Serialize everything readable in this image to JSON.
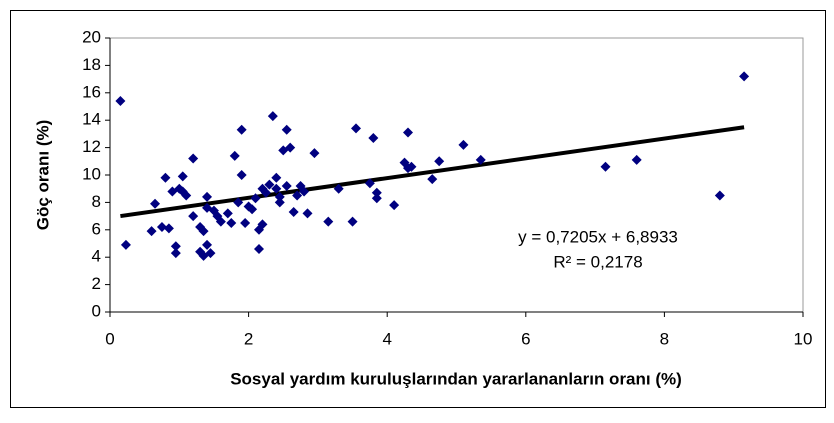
{
  "chart_data": {
    "type": "scatter",
    "xlabel": "Sosyal yardım kuruluşlarından yararlananların oranı (%)",
    "ylabel": "Göç oranı (%)",
    "color": "#000080",
    "xlim": [
      0,
      10
    ],
    "xticks": [
      0,
      2,
      4,
      6,
      8,
      10
    ],
    "ylim": [
      0,
      20
    ],
    "yticks": [
      0,
      2,
      4,
      6,
      8,
      10,
      12,
      14,
      16,
      18,
      20
    ],
    "x": [
      0.15,
      0.23,
      0.6,
      0.65,
      0.75,
      0.8,
      0.85,
      0.9,
      0.95,
      0.95,
      1.0,
      1.05,
      1.05,
      1.1,
      1.2,
      1.2,
      1.3,
      1.3,
      1.35,
      1.35,
      1.4,
      1.4,
      1.4,
      1.45,
      1.5,
      1.55,
      1.6,
      1.7,
      1.75,
      1.8,
      1.85,
      1.9,
      1.9,
      1.95,
      2.0,
      2.05,
      2.1,
      2.15,
      2.15,
      2.2,
      2.2,
      2.25,
      2.3,
      2.35,
      2.4,
      2.4,
      2.45,
      2.45,
      2.5,
      2.55,
      2.55,
      2.6,
      2.65,
      2.7,
      2.75,
      2.8,
      2.85,
      2.95,
      3.15,
      3.3,
      3.5,
      3.55,
      3.75,
      3.8,
      3.85,
      3.85,
      4.1,
      4.25,
      4.3,
      4.3,
      4.35,
      4.65,
      4.75,
      5.1,
      5.35,
      7.15,
      7.6,
      8.8,
      9.15
    ],
    "values": [
      15.4,
      4.9,
      5.9,
      7.9,
      6.2,
      9.8,
      6.1,
      8.8,
      4.8,
      4.3,
      9.0,
      9.9,
      8.8,
      8.5,
      11.2,
      7.0,
      6.2,
      4.4,
      4.1,
      5.9,
      4.9,
      8.4,
      7.6,
      4.3,
      7.4,
      7.0,
      6.6,
      7.2,
      6.5,
      11.4,
      8.0,
      13.3,
      10.0,
      6.5,
      7.7,
      7.5,
      8.3,
      4.6,
      6.0,
      6.4,
      9.0,
      8.7,
      9.3,
      14.3,
      9.0,
      9.8,
      8.0,
      8.4,
      11.8,
      13.3,
      9.2,
      12.0,
      7.3,
      8.5,
      9.2,
      8.8,
      7.2,
      11.6,
      6.6,
      9.0,
      6.6,
      13.4,
      9.4,
      12.7,
      8.3,
      8.7,
      7.8,
      10.9,
      10.5,
      13.1,
      10.6,
      9.7,
      11.0,
      12.2,
      11.1,
      10.6,
      11.1,
      8.5,
      17.2
    ],
    "trendline": {
      "slope": 0.7205,
      "intercept": 6.8933,
      "equation": "y = 0,7205x + 6,8933",
      "r2": "R² = 0,2178",
      "color": "#000000"
    }
  }
}
